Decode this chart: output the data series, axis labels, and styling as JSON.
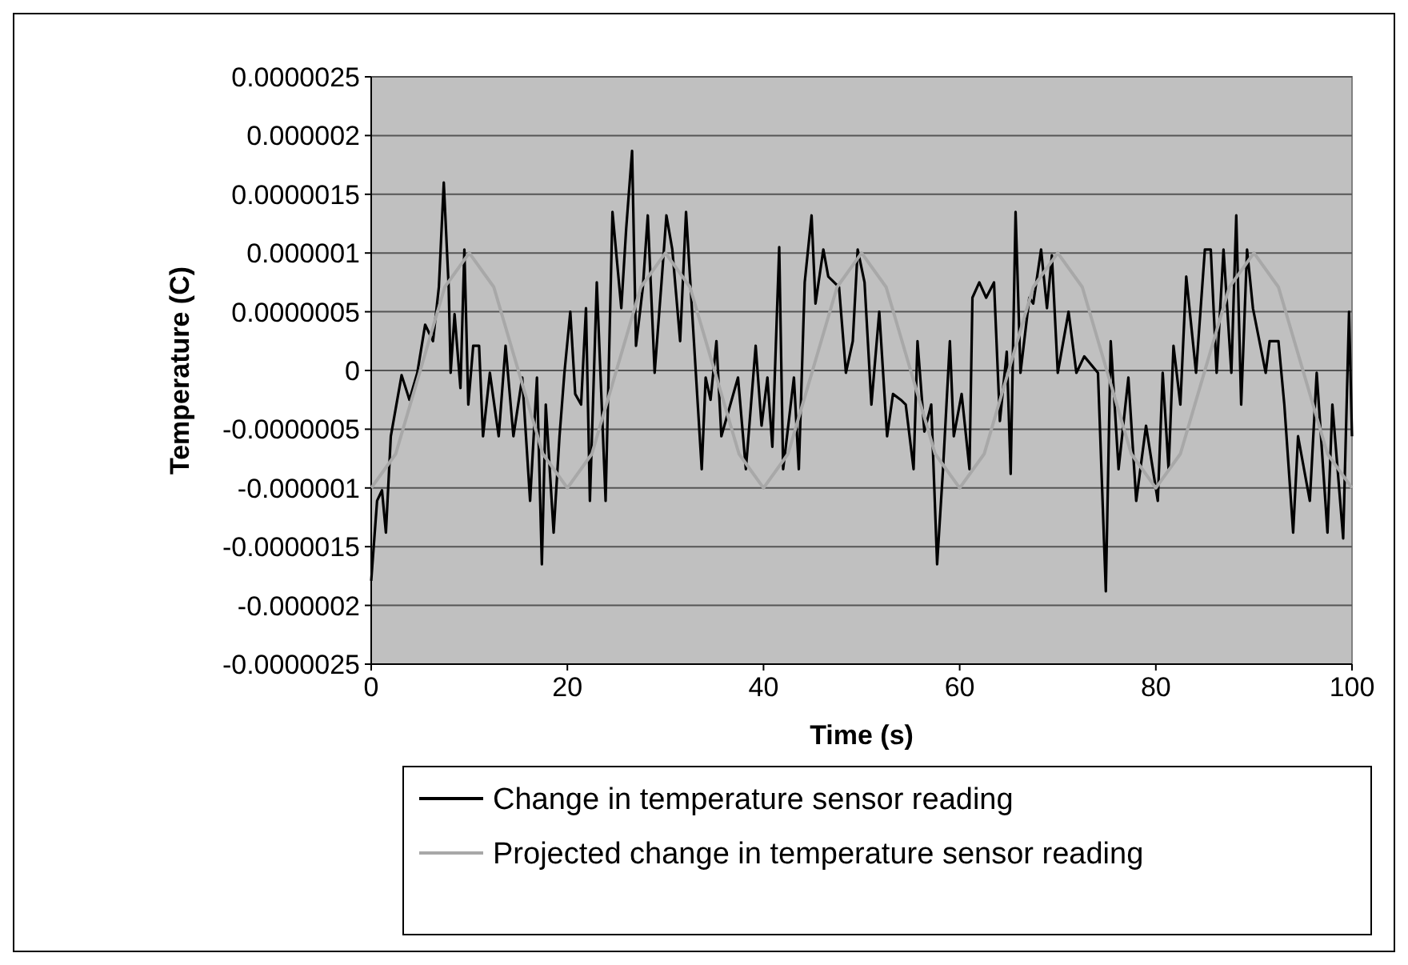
{
  "chart_data": {
    "type": "line",
    "xlabel": "Time (s)",
    "ylabel": "Temperature (C)",
    "xlim": [
      0,
      100
    ],
    "xticks": [
      0,
      20,
      40,
      60,
      80,
      100
    ],
    "ylim": [
      -2.5e-06,
      2.5e-06
    ],
    "yticks": [
      {
        "value": -2.5e-06,
        "label": "-0.0000025"
      },
      {
        "value": -2e-06,
        "label": "-0.000002"
      },
      {
        "value": -1.5e-06,
        "label": "-0.0000015"
      },
      {
        "value": -1e-06,
        "label": "-0.000001"
      },
      {
        "value": -5e-07,
        "label": "-0.0000005"
      },
      {
        "value": 0,
        "label": "0"
      },
      {
        "value": 5e-07,
        "label": "0.0000005"
      },
      {
        "value": 1e-06,
        "label": "0.000001"
      },
      {
        "value": 1.5e-06,
        "label": "0.0000015"
      },
      {
        "value": 2e-06,
        "label": "0.000002"
      },
      {
        "value": 2.5e-06,
        "label": "0.0000025"
      }
    ],
    "grid": "y",
    "legend": "bottom",
    "marker": "none",
    "series": [
      {
        "name": "Change in temperature sensor reading",
        "color": "#000000",
        "x": [
          0,
          0.6,
          1.1,
          1.5,
          2.0,
          3.1,
          3.9,
          4.7,
          5.5,
          6.3,
          6.9,
          7.4,
          7.9,
          8.1,
          8.5,
          9.1,
          9.5,
          9.9,
          10.4,
          11.0,
          11.4,
          12.1,
          13.0,
          13.7,
          14.5,
          15.4,
          16.2,
          16.9,
          17.4,
          17.8,
          18.6,
          19.2,
          19.7,
          20.3,
          20.8,
          21.4,
          21.9,
          22.3,
          23.0,
          23.9,
          24.6,
          25.5,
          26.0,
          26.6,
          27.0,
          27.7,
          28.2,
          28.9,
          29.6,
          30.1,
          30.7,
          31.5,
          32.1,
          32.8,
          33.7,
          34.1,
          34.6,
          35.2,
          35.7,
          37.4,
          38.2,
          39.2,
          39.8,
          40.4,
          40.9,
          41.6,
          42.0,
          43.1,
          43.6,
          44.2,
          44.9,
          45.3,
          46.1,
          46.6,
          47.7,
          48.4,
          49.1,
          49.6,
          50.3,
          51.0,
          51.8,
          52.6,
          53.2,
          54.0,
          54.5,
          55.3,
          55.7,
          56.4,
          57.1,
          57.7,
          58.3,
          59.0,
          59.4,
          60.2,
          61.0,
          61.3,
          62.0,
          62.7,
          63.5,
          64.1,
          64.8,
          65.2,
          65.7,
          66.2,
          67.1,
          67.5,
          68.3,
          68.9,
          69.4,
          70.0,
          71.1,
          71.9,
          72.7,
          74.1,
          74.9,
          75.4,
          76.2,
          77.2,
          78.0,
          79.0,
          80.2,
          80.7,
          81.3,
          81.8,
          82.5,
          83.1,
          84.1,
          85.0,
          85.6,
          86.2,
          86.9,
          87.7,
          88.2,
          88.7,
          89.3,
          89.9,
          91.2,
          91.6,
          92.5,
          93.1,
          94.0,
          94.5,
          95.7,
          96.4,
          97.5,
          98.0,
          99.1,
          99.7,
          100
        ],
        "values": [
          -1.79e-06,
          -1.11e-06,
          -1.02e-06,
          -1.38e-06,
          -5.6e-07,
          -4e-08,
          -2.5e-07,
          -2e-08,
          3.9e-07,
          2.5e-07,
          7.1e-07,
          1.6e-06,
          7.1e-07,
          -2e-08,
          4.8e-07,
          -1.5e-07,
          1.03e-06,
          -2.9e-07,
          2.1e-07,
          2.1e-07,
          -5.6e-07,
          -2e-08,
          -5.6e-07,
          2.1e-07,
          -5.6e-07,
          -6e-08,
          -1.11e-06,
          -6e-08,
          -1.65e-06,
          -2.9e-07,
          -1.38e-06,
          -5.6e-07,
          -2e-08,
          5e-07,
          -2e-07,
          -2.9e-07,
          5.3e-07,
          -1.11e-06,
          7.5e-07,
          -1.11e-06,
          1.35e-06,
          5.3e-07,
          1.21e-06,
          1.87e-06,
          2.1e-07,
          7.1e-07,
          1.32e-06,
          -2e-08,
          7.5e-07,
          1.32e-06,
          1.03e-06,
          2.5e-07,
          1.35e-06,
          3.9e-07,
          -8.4e-07,
          -6e-08,
          -2.5e-07,
          2.5e-07,
          -5.6e-07,
          -6e-08,
          -8.4e-07,
          2.1e-07,
          -4.7e-07,
          -6e-08,
          -6.5e-07,
          1.05e-06,
          -8.4e-07,
          -6e-08,
          -8.4e-07,
          7.5e-07,
          1.32e-06,
          5.7e-07,
          1.03e-06,
          8e-07,
          7.1e-07,
          -2e-08,
          2.5e-07,
          1.03e-06,
          7.5e-07,
          -2.9e-07,
          5e-07,
          -5.6e-07,
          -2e-07,
          -2.5e-07,
          -2.9e-07,
          -8.4e-07,
          2.5e-07,
          -5.2e-07,
          -2.9e-07,
          -1.65e-06,
          -8.4e-07,
          2.5e-07,
          -5.6e-07,
          -2e-07,
          -8.4e-07,
          6.2e-07,
          7.5e-07,
          6.2e-07,
          7.5e-07,
          -4.3e-07,
          1.6e-07,
          -8.8e-07,
          1.35e-06,
          -2e-08,
          6.2e-07,
          5.7e-07,
          1.03e-06,
          5.3e-07,
          9.8e-07,
          -2e-08,
          5e-07,
          -2e-08,
          1.2e-07,
          -2e-08,
          -1.88e-06,
          2.5e-07,
          -8.4e-07,
          -6e-08,
          -1.11e-06,
          -4.7e-07,
          -1.11e-06,
          -2e-08,
          -8.4e-07,
          2.1e-07,
          -2.9e-07,
          8e-07,
          -2e-08,
          1.03e-06,
          1.03e-06,
          -2e-08,
          1.03e-06,
          -2e-08,
          1.32e-06,
          -2.9e-07,
          1.03e-06,
          5.3e-07,
          -2e-08,
          2.5e-07,
          2.5e-07,
          -2.9e-07,
          -1.38e-06,
          -5.6e-07,
          -1.11e-06,
          -2e-08,
          -1.38e-06,
          -2.9e-07,
          -1.43e-06,
          5e-07,
          -5.6e-07
        ]
      },
      {
        "name": "Projected change in temperature sensor reading",
        "color": "#a8a8a8",
        "x": [
          0,
          2.5,
          5,
          7.5,
          10,
          12.5,
          15,
          17.5,
          20,
          22.5,
          25,
          27.5,
          30,
          32.5,
          35,
          37.5,
          40,
          42.5,
          45,
          47.5,
          50,
          52.5,
          55,
          57.5,
          60,
          62.5,
          65,
          67.5,
          70,
          72.5,
          75,
          77.5,
          80,
          82.5,
          85,
          87.5,
          90,
          92.5,
          95,
          97.5,
          100
        ],
        "values": [
          -1e-06,
          -7.1e-07,
          0,
          7.1e-07,
          1e-06,
          7.1e-07,
          0,
          -7.1e-07,
          -1e-06,
          -7.1e-07,
          0,
          7.1e-07,
          1e-06,
          7.1e-07,
          0,
          -7.1e-07,
          -1e-06,
          -7.1e-07,
          0,
          7.1e-07,
          1e-06,
          7.1e-07,
          0,
          -7.1e-07,
          -1e-06,
          -7.1e-07,
          0,
          7.1e-07,
          1e-06,
          7.1e-07,
          0,
          -7.1e-07,
          -1e-06,
          -7.1e-07,
          0,
          7.1e-07,
          1e-06,
          7.1e-07,
          0,
          -7.1e-07,
          -1e-06
        ]
      }
    ]
  }
}
